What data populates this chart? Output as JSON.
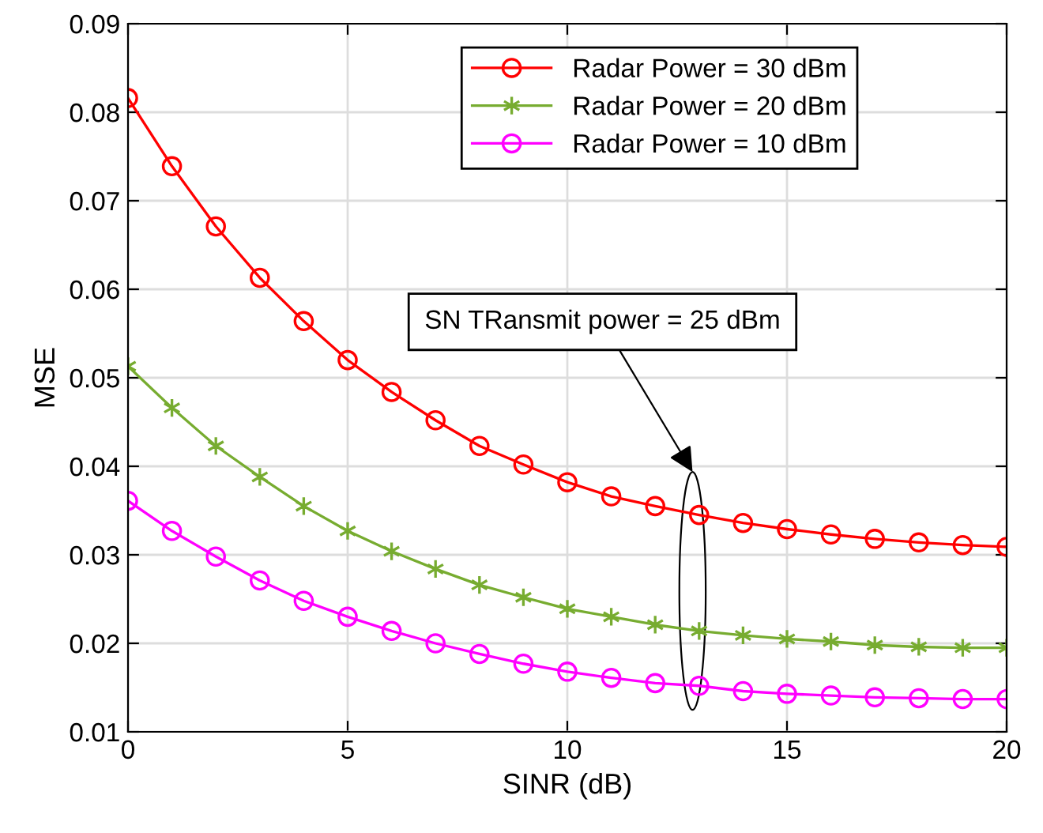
{
  "chart_data": {
    "type": "line",
    "xlabel": "SINR (dB)",
    "ylabel": "MSE",
    "x": [
      0,
      1,
      2,
      3,
      4,
      5,
      6,
      7,
      8,
      9,
      10,
      11,
      12,
      13,
      14,
      15,
      16,
      17,
      18,
      19,
      20
    ],
    "series": [
      {
        "name": "Radar Power = 30 dBm",
        "color": "#ff0000",
        "marker": "circle",
        "values": [
          0.0816,
          0.0739,
          0.0671,
          0.0613,
          0.0564,
          0.052,
          0.0484,
          0.0452,
          0.0423,
          0.0402,
          0.0382,
          0.0366,
          0.0355,
          0.0345,
          0.0336,
          0.0329,
          0.0323,
          0.0318,
          0.0314,
          0.0311,
          0.0309
        ]
      },
      {
        "name": "Radar Power = 20 dBm",
        "color": "#77ac30",
        "marker": "cross",
        "values": [
          0.0513,
          0.0466,
          0.0423,
          0.0388,
          0.0355,
          0.0327,
          0.0304,
          0.0284,
          0.0266,
          0.0252,
          0.0239,
          0.023,
          0.0221,
          0.0214,
          0.0209,
          0.0205,
          0.0202,
          0.0198,
          0.0196,
          0.0195,
          0.0195
        ]
      },
      {
        "name": "Radar Power = 10 dBm",
        "color": "#ff00ff",
        "marker": "circle",
        "values": [
          0.0361,
          0.0327,
          0.0298,
          0.0271,
          0.0248,
          0.023,
          0.0214,
          0.02,
          0.0188,
          0.0177,
          0.0168,
          0.0161,
          0.0155,
          0.0152,
          0.0146,
          0.0143,
          0.0141,
          0.0139,
          0.0138,
          0.0137,
          0.0137
        ]
      }
    ],
    "xlim": [
      0,
      20
    ],
    "xticks": [
      0,
      5,
      10,
      15,
      20
    ],
    "ylim": [
      0.01,
      0.09
    ],
    "yticks": [
      0.01,
      0.02,
      0.03,
      0.04,
      0.05,
      0.06,
      0.07,
      0.08,
      0.09
    ],
    "annotations": [
      "SN TRansmit power = 25 dBm"
    ],
    "grid": true,
    "legend": "top right",
    "line_style": "solid"
  }
}
